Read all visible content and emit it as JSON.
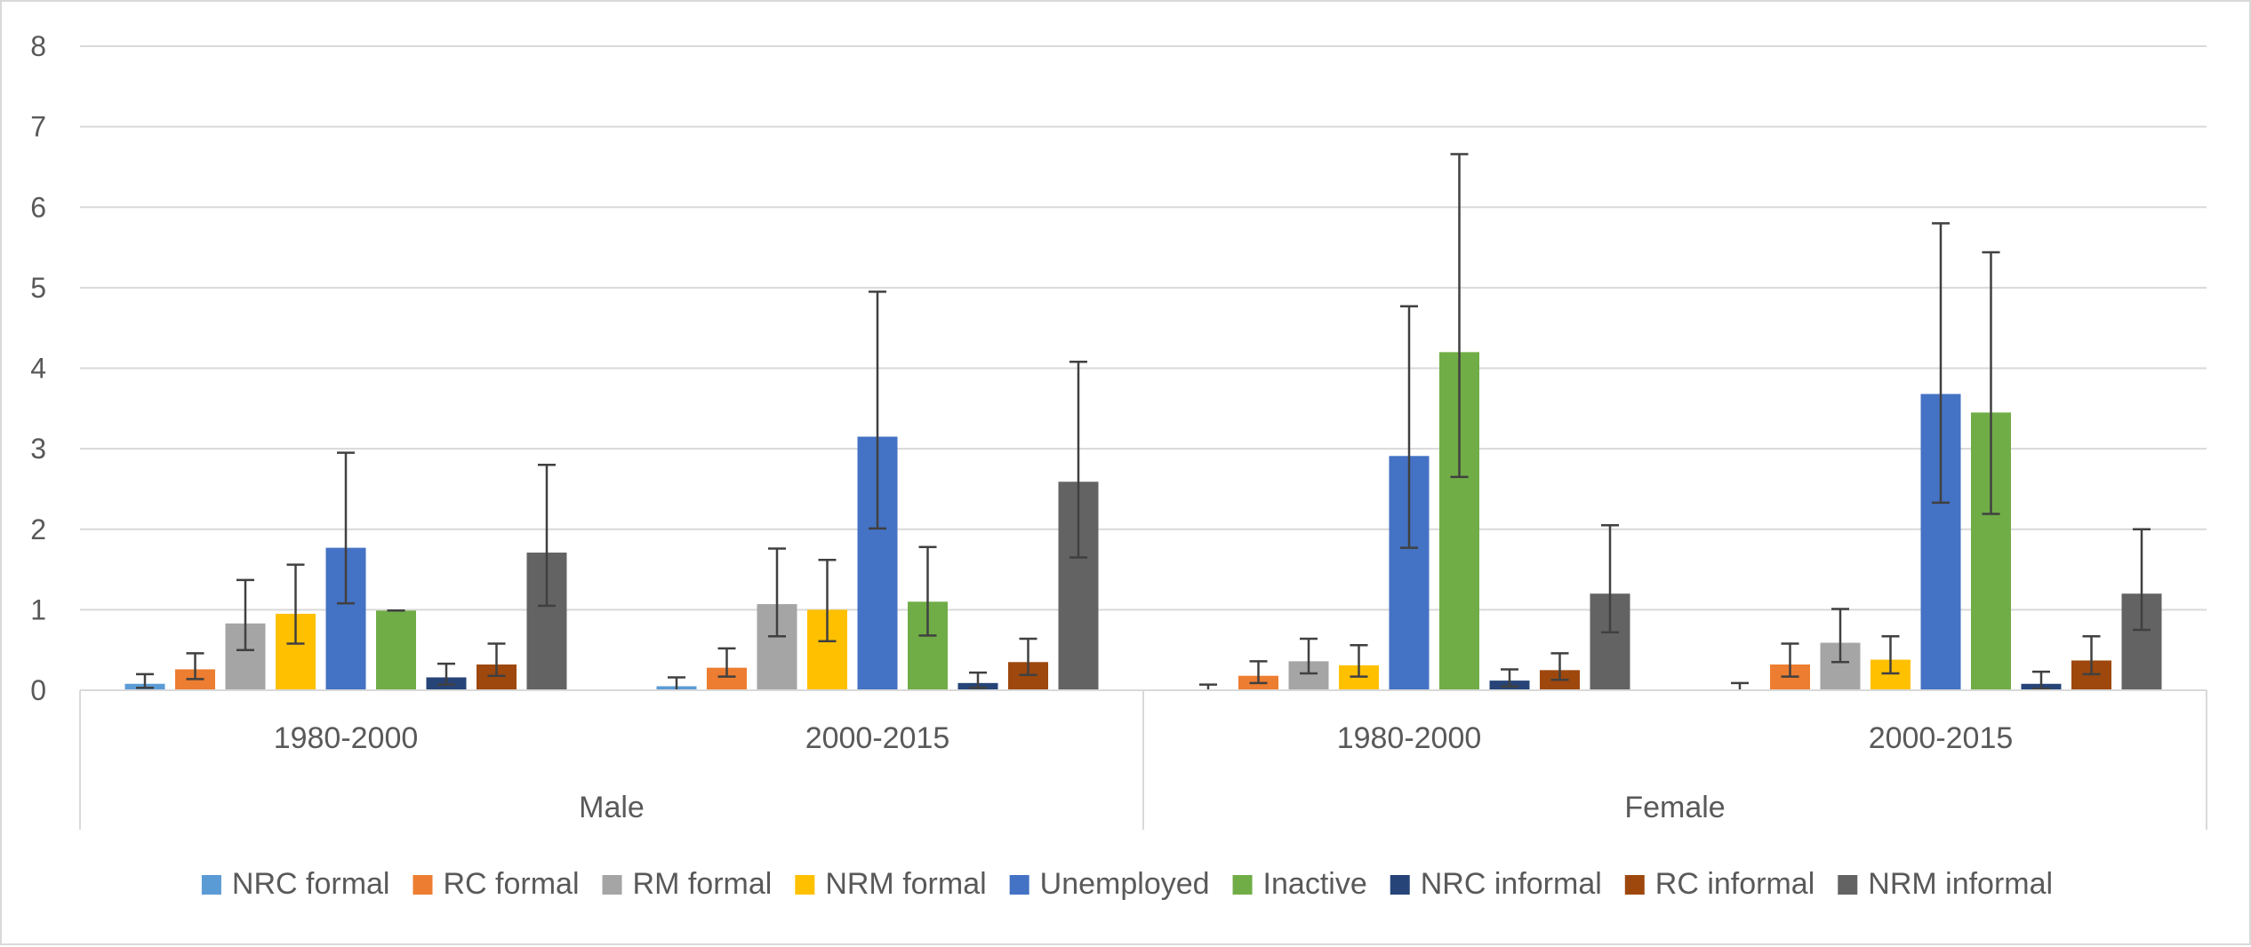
{
  "chart_data": {
    "type": "bar",
    "ylim": [
      0,
      8
    ],
    "y_ticks": [
      0,
      1,
      2,
      3,
      4,
      5,
      6,
      7,
      8
    ],
    "grid": true,
    "legend_position": "bottom",
    "groups": [
      "Male",
      "Female"
    ],
    "categories": [
      "1980-2000",
      "2000-2015",
      "1980-2000",
      "2000-2015"
    ],
    "category_group": [
      0,
      0,
      1,
      1
    ],
    "series": [
      {
        "name": "NRC formal",
        "color": "#5B9BD5",
        "values": [
          0.08,
          0.05,
          0.0,
          0.0
        ],
        "err_low": [
          0.03,
          0.0,
          0.0,
          0.0
        ],
        "err_high": [
          0.2,
          0.16,
          0.07,
          0.09
        ]
      },
      {
        "name": "RC formal",
        "color": "#ED7D31",
        "values": [
          0.26,
          0.28,
          0.18,
          0.32
        ],
        "err_low": [
          0.14,
          0.17,
          0.09,
          0.17
        ],
        "err_high": [
          0.46,
          0.52,
          0.36,
          0.58
        ]
      },
      {
        "name": "RM formal",
        "color": "#A5A5A5",
        "values": [
          0.83,
          1.07,
          0.36,
          0.59
        ],
        "err_low": [
          0.5,
          0.67,
          0.21,
          0.35
        ],
        "err_high": [
          1.37,
          1.76,
          0.64,
          1.01
        ]
      },
      {
        "name": "NRM formal",
        "color": "#FFC000",
        "values": [
          0.95,
          1.0,
          0.31,
          0.38
        ],
        "err_low": [
          0.58,
          0.61,
          0.17,
          0.21
        ],
        "err_high": [
          1.56,
          1.62,
          0.56,
          0.67
        ]
      },
      {
        "name": "Unemployed",
        "color": "#4472C4",
        "values": [
          1.77,
          3.15,
          2.91,
          3.68
        ],
        "err_low": [
          1.08,
          2.01,
          1.77,
          2.33
        ],
        "err_high": [
          2.95,
          4.95,
          4.77,
          5.8
        ]
      },
      {
        "name": "Inactive",
        "color": "#70AD47",
        "values": [
          0.99,
          1.1,
          4.2,
          3.45
        ],
        "err_low": [
          0.99,
          0.68,
          2.65,
          2.19
        ],
        "err_high": [
          0.99,
          1.78,
          6.66,
          5.44
        ]
      },
      {
        "name": "NRC informal",
        "color": "#264478",
        "values": [
          0.16,
          0.09,
          0.12,
          0.08
        ],
        "err_low": [
          0.07,
          0.03,
          0.05,
          0.02
        ],
        "err_high": [
          0.33,
          0.22,
          0.26,
          0.23
        ]
      },
      {
        "name": "RC informal",
        "color": "#9E480E",
        "values": [
          0.32,
          0.35,
          0.25,
          0.37
        ],
        "err_low": [
          0.18,
          0.19,
          0.13,
          0.2
        ],
        "err_high": [
          0.58,
          0.64,
          0.46,
          0.67
        ]
      },
      {
        "name": "NRM informal",
        "color": "#636363",
        "values": [
          1.71,
          2.59,
          1.2,
          1.2
        ],
        "err_low": [
          1.05,
          1.65,
          0.72,
          0.75
        ],
        "err_high": [
          2.8,
          4.08,
          2.05,
          2.0
        ]
      }
    ]
  }
}
